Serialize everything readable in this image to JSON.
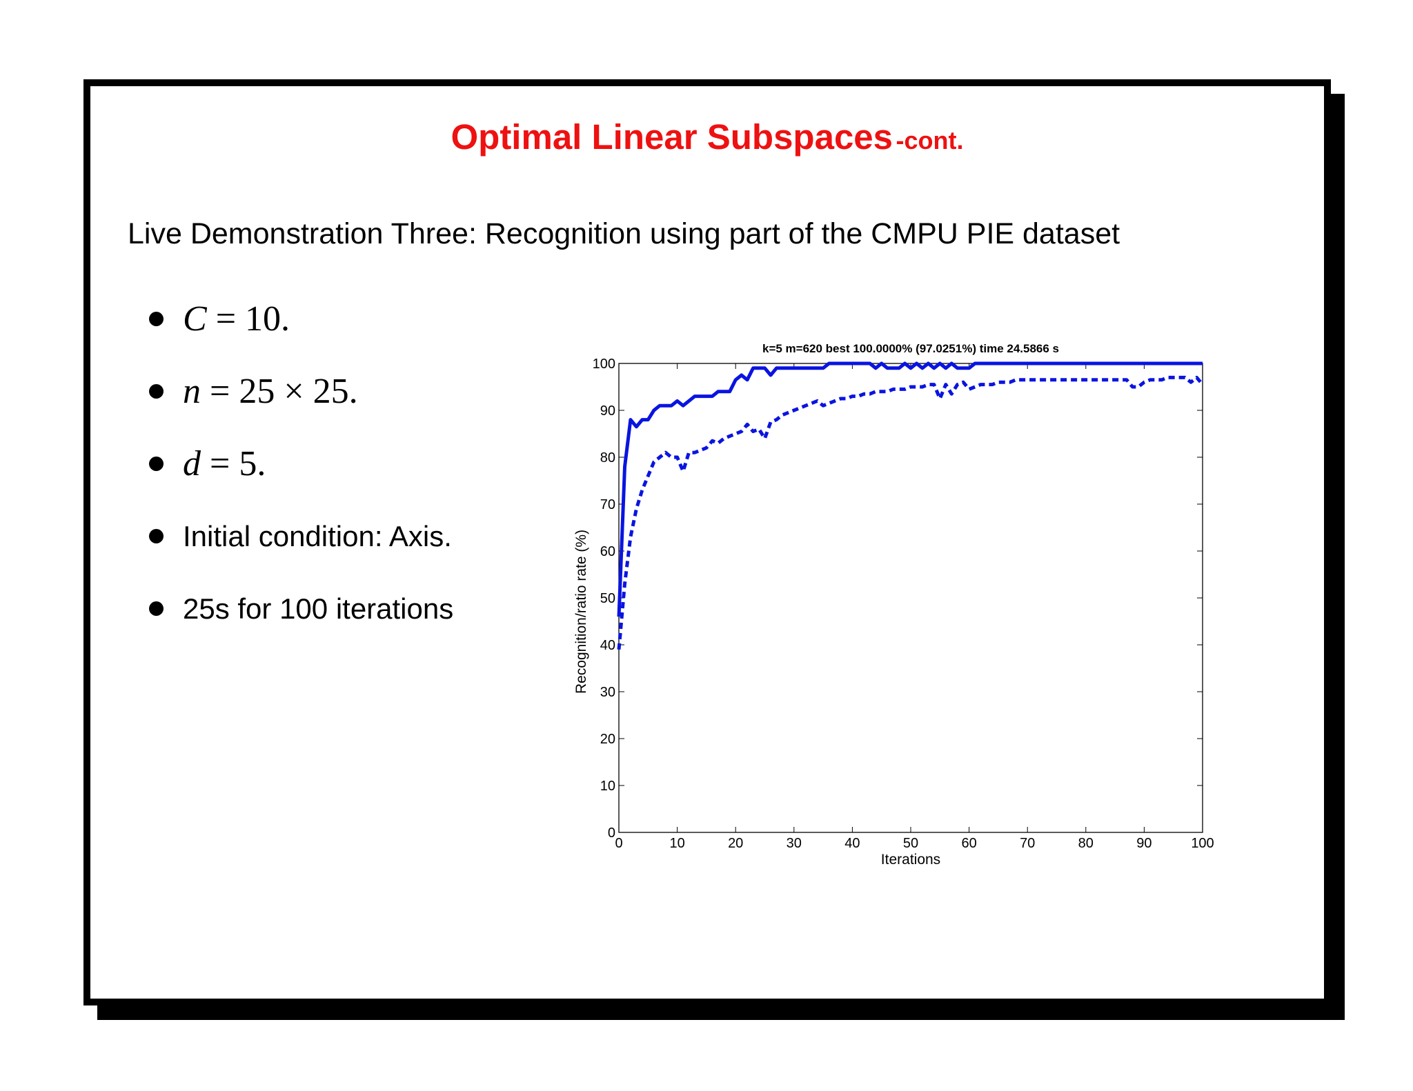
{
  "slide": {
    "title": "Optimal Linear Subspaces",
    "title_suffix": "-cont.",
    "subtitle": "Live Demonstration Three: Recognition using part of the CMPU PIE dataset",
    "title_color": "#ee1111",
    "bullets": [
      {
        "var": "C",
        "rest": " = 10."
      },
      {
        "var": "n",
        "rest": " = 25 × 25."
      },
      {
        "var": "d",
        "rest": " = 5."
      },
      {
        "text": "Initial condition: Axis."
      },
      {
        "text": "25s for 100 iterations"
      }
    ]
  },
  "chart_data": {
    "type": "line",
    "title": "k=5 m=620 best 100.0000% (97.0251%) time 24.5866 s",
    "xlabel": "Iterations",
    "ylabel": "Recognition/ratio rate (%)",
    "xlim": [
      0,
      100
    ],
    "ylim": [
      0,
      100
    ],
    "xticks": [
      0,
      10,
      20,
      30,
      40,
      50,
      60,
      70,
      80,
      90,
      100
    ],
    "yticks": [
      0,
      10,
      20,
      30,
      40,
      50,
      60,
      70,
      80,
      90,
      100
    ],
    "grid": false,
    "series_color": "#0a14e0",
    "series": [
      {
        "style": "solid",
        "points": [
          [
            0,
            46
          ],
          [
            1,
            78
          ],
          [
            2,
            88
          ],
          [
            3,
            86.5
          ],
          [
            4,
            88
          ],
          [
            5,
            88
          ],
          [
            6,
            90
          ],
          [
            7,
            91
          ],
          [
            8,
            91
          ],
          [
            9,
            91
          ],
          [
            10,
            92
          ],
          [
            11,
            91
          ],
          [
            12,
            92
          ],
          [
            13,
            93
          ],
          [
            14,
            93
          ],
          [
            15,
            93
          ],
          [
            16,
            93
          ],
          [
            17,
            94
          ],
          [
            18,
            94
          ],
          [
            19,
            94
          ],
          [
            20,
            96.5
          ],
          [
            21,
            97.5
          ],
          [
            22,
            96.5
          ],
          [
            23,
            99
          ],
          [
            24,
            99
          ],
          [
            25,
            99
          ],
          [
            26,
            97.5
          ],
          [
            27,
            99
          ],
          [
            28,
            99
          ],
          [
            29,
            99
          ],
          [
            30,
            99
          ],
          [
            31,
            99
          ],
          [
            32,
            99
          ],
          [
            33,
            99
          ],
          [
            34,
            99
          ],
          [
            35,
            99
          ],
          [
            36,
            100
          ],
          [
            37,
            100
          ],
          [
            38,
            100
          ],
          [
            39,
            100
          ],
          [
            40,
            100
          ],
          [
            41,
            100
          ],
          [
            42,
            100
          ],
          [
            43,
            100
          ],
          [
            44,
            99
          ],
          [
            45,
            100
          ],
          [
            46,
            99
          ],
          [
            47,
            99
          ],
          [
            48,
            99
          ],
          [
            49,
            100
          ],
          [
            50,
            99
          ],
          [
            51,
            100
          ],
          [
            52,
            99
          ],
          [
            53,
            100
          ],
          [
            54,
            99
          ],
          [
            55,
            100
          ],
          [
            56,
            99
          ],
          [
            57,
            100
          ],
          [
            58,
            99
          ],
          [
            59,
            99
          ],
          [
            60,
            99
          ],
          [
            61,
            100
          ],
          [
            62,
            100
          ],
          [
            65,
            100
          ],
          [
            70,
            100
          ],
          [
            75,
            100
          ],
          [
            80,
            100
          ],
          [
            85,
            100
          ],
          [
            90,
            100
          ],
          [
            95,
            100
          ],
          [
            100,
            100
          ]
        ]
      },
      {
        "style": "dashed",
        "points": [
          [
            0,
            39
          ],
          [
            1,
            53
          ],
          [
            2,
            63
          ],
          [
            3,
            69
          ],
          [
            4,
            73
          ],
          [
            5,
            76
          ],
          [
            6,
            79
          ],
          [
            7,
            80
          ],
          [
            8,
            81
          ],
          [
            9,
            80
          ],
          [
            10,
            80
          ],
          [
            11,
            77
          ],
          [
            12,
            81
          ],
          [
            13,
            81
          ],
          [
            14,
            81.5
          ],
          [
            15,
            82
          ],
          [
            16,
            83.5
          ],
          [
            17,
            83
          ],
          [
            18,
            84
          ],
          [
            19,
            84.5
          ],
          [
            20,
            85
          ],
          [
            21,
            85.5
          ],
          [
            22,
            87
          ],
          [
            23,
            85.5
          ],
          [
            24,
            86
          ],
          [
            25,
            84
          ],
          [
            26,
            87.5
          ],
          [
            27,
            88
          ],
          [
            28,
            89
          ],
          [
            29,
            89.5
          ],
          [
            30,
            90
          ],
          [
            31,
            90.5
          ],
          [
            32,
            91
          ],
          [
            33,
            91.5
          ],
          [
            34,
            92
          ],
          [
            35,
            91
          ],
          [
            36,
            91.5
          ],
          [
            37,
            92
          ],
          [
            38,
            92.5
          ],
          [
            39,
            92.5
          ],
          [
            40,
            93
          ],
          [
            41,
            93
          ],
          [
            42,
            93.5
          ],
          [
            43,
            93.5
          ],
          [
            44,
            94
          ],
          [
            45,
            94
          ],
          [
            46,
            94
          ],
          [
            47,
            94.5
          ],
          [
            48,
            94.5
          ],
          [
            49,
            94.5
          ],
          [
            50,
            95
          ],
          [
            51,
            95
          ],
          [
            52,
            95
          ],
          [
            53,
            95.5
          ],
          [
            54,
            95.5
          ],
          [
            55,
            92.5
          ],
          [
            56,
            95.5
          ],
          [
            57,
            93.5
          ],
          [
            58,
            95.5
          ],
          [
            59,
            96
          ],
          [
            60,
            94.5
          ],
          [
            61,
            95
          ],
          [
            62,
            95.5
          ],
          [
            63,
            95.5
          ],
          [
            64,
            95.5
          ],
          [
            65,
            96
          ],
          [
            66,
            96
          ],
          [
            67,
            96
          ],
          [
            68,
            96.5
          ],
          [
            69,
            96.5
          ],
          [
            70,
            96.5
          ],
          [
            71,
            96.5
          ],
          [
            72,
            96.5
          ],
          [
            73,
            96.5
          ],
          [
            74,
            96.5
          ],
          [
            75,
            96.5
          ],
          [
            76,
            96.5
          ],
          [
            77,
            96.5
          ],
          [
            78,
            96.5
          ],
          [
            79,
            96.5
          ],
          [
            80,
            96.5
          ],
          [
            81,
            96.5
          ],
          [
            82,
            96.5
          ],
          [
            83,
            96.5
          ],
          [
            84,
            96.5
          ],
          [
            85,
            96.5
          ],
          [
            86,
            96.5
          ],
          [
            87,
            96.5
          ],
          [
            88,
            95
          ],
          [
            89,
            95
          ],
          [
            90,
            96
          ],
          [
            91,
            96.5
          ],
          [
            92,
            96.5
          ],
          [
            93,
            96.5
          ],
          [
            94,
            97
          ],
          [
            95,
            97
          ],
          [
            96,
            97
          ],
          [
            97,
            97
          ],
          [
            98,
            96
          ],
          [
            99,
            97
          ],
          [
            100,
            95.5
          ]
        ]
      }
    ]
  }
}
